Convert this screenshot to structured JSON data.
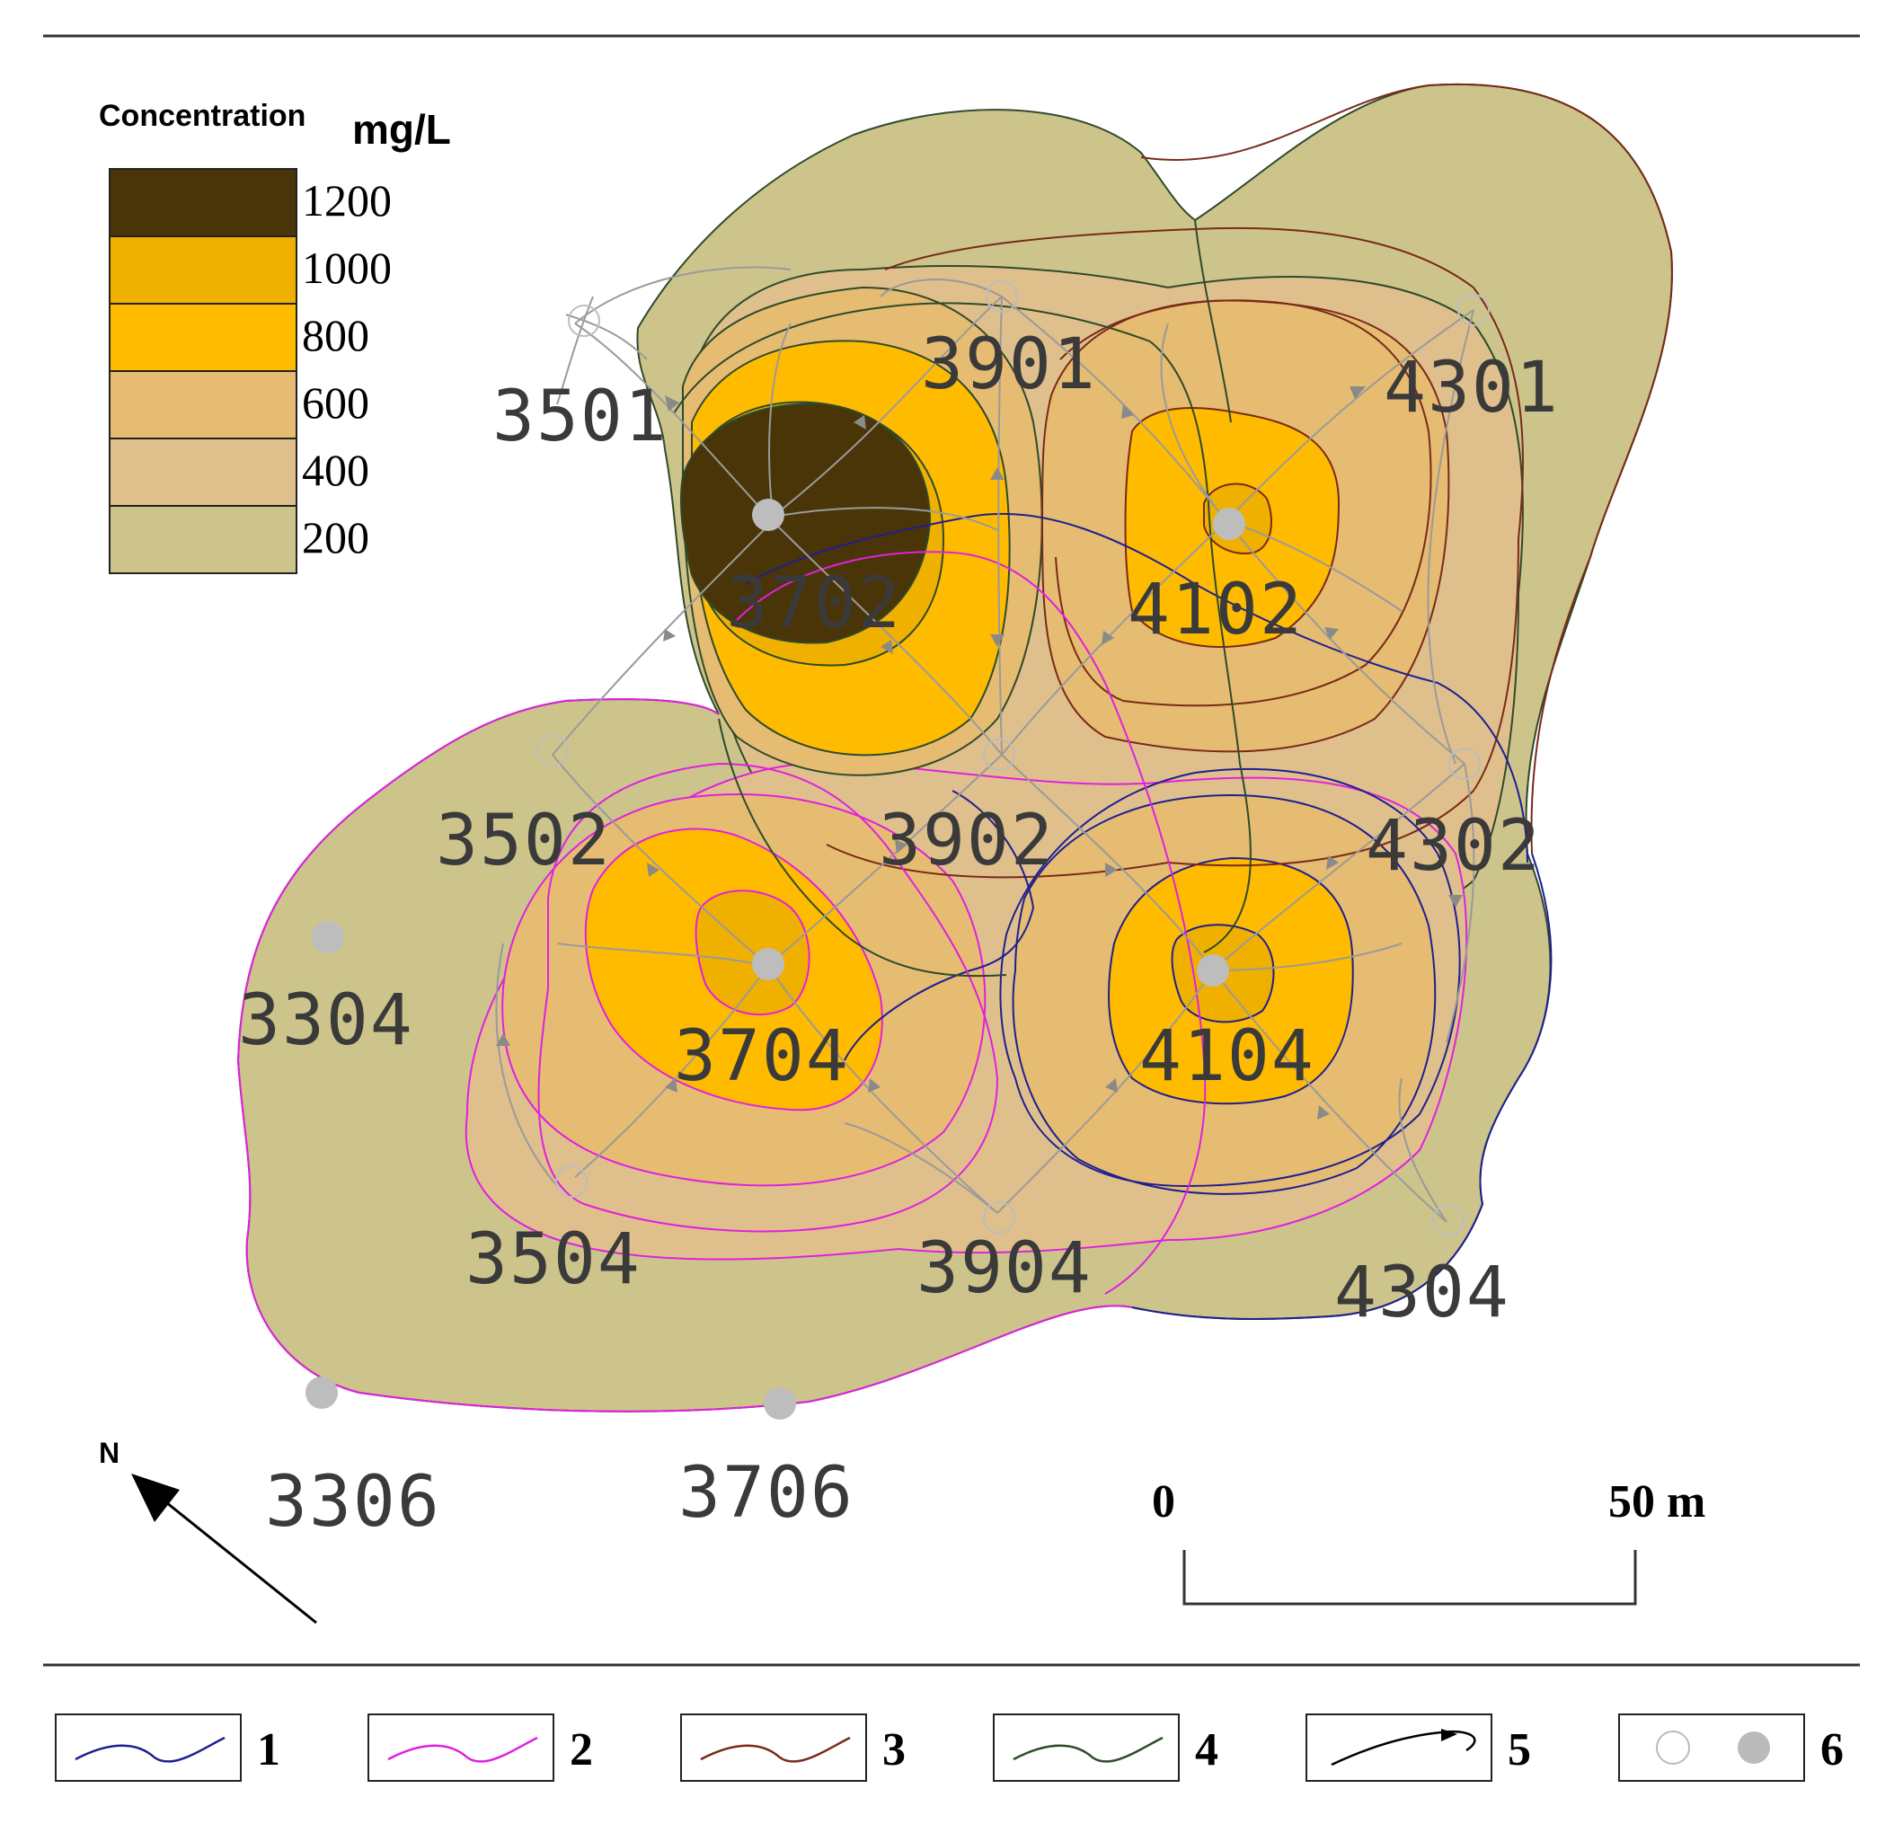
{
  "legend": {
    "title": "Concentration",
    "unit": "mg/L",
    "classes": [
      {
        "value": "1200",
        "color": "#4a3508"
      },
      {
        "value": "1000",
        "color": "#f0b000"
      },
      {
        "value": "800",
        "color": "#ffbb00"
      },
      {
        "value": "600",
        "color": "#e5bc72"
      },
      {
        "value": "400",
        "color": "#dfc08c"
      },
      {
        "value": "200",
        "color": "#cdc48c"
      }
    ]
  },
  "wells": [
    {
      "id": "3501",
      "type": "open"
    },
    {
      "id": "3901",
      "type": "open"
    },
    {
      "id": "4301",
      "type": "open"
    },
    {
      "id": "3702",
      "type": "filled"
    },
    {
      "id": "4102",
      "type": "filled"
    },
    {
      "id": "3502",
      "type": "open"
    },
    {
      "id": "3902",
      "type": "open"
    },
    {
      "id": "4302",
      "type": "open"
    },
    {
      "id": "3304",
      "type": "filled"
    },
    {
      "id": "3704",
      "type": "filled"
    },
    {
      "id": "4104",
      "type": "filled"
    },
    {
      "id": "3504",
      "type": "open"
    },
    {
      "id": "3904",
      "type": "open"
    },
    {
      "id": "4304",
      "type": "open"
    },
    {
      "id": "3306",
      "type": "filled"
    },
    {
      "id": "3706",
      "type": "filled"
    }
  ],
  "north": {
    "label": "N"
  },
  "scale_bar": {
    "start_label": "0",
    "end_label": "50 m"
  },
  "key": [
    {
      "number": "1",
      "color": "#1f1f8f"
    },
    {
      "number": "2",
      "color": "#e020e0"
    },
    {
      "number": "3",
      "color": "#7a2a1a"
    },
    {
      "number": "4",
      "color": "#2f4a2a"
    },
    {
      "number": "5",
      "color": "#000000"
    },
    {
      "number": "6",
      "color": "#bbbbbb"
    }
  ]
}
